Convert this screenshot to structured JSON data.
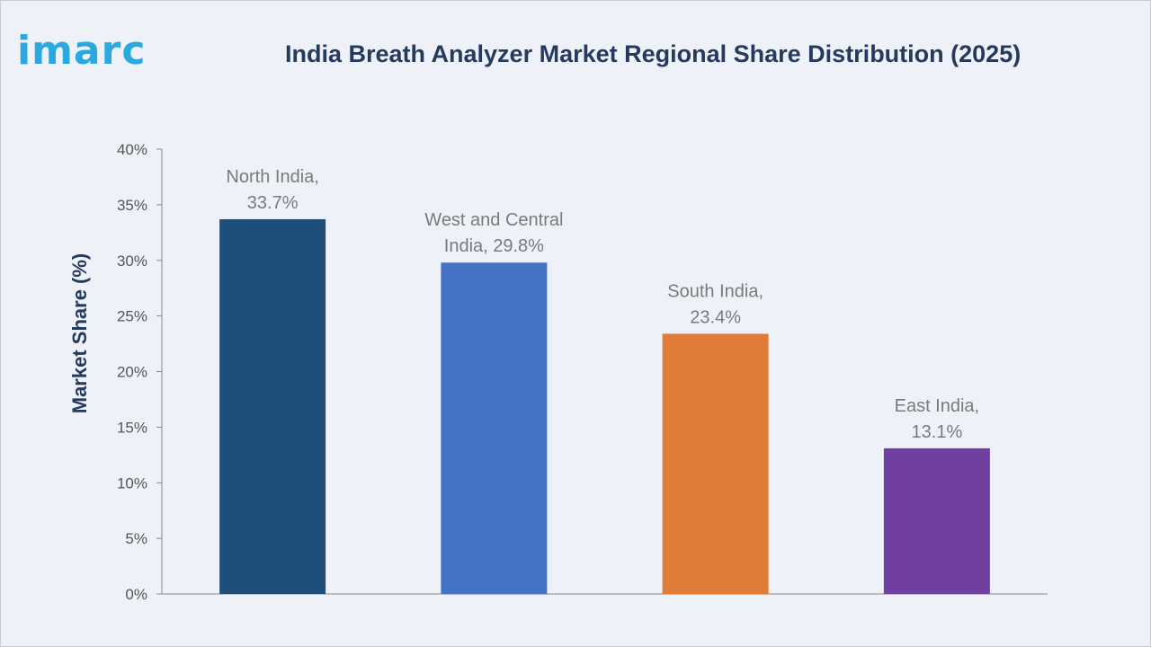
{
  "logo_text": "imarc",
  "chart_data": {
    "type": "bar",
    "title": "India Breath Analyzer Market Regional Share Distribution (2025)",
    "ylabel": "Market Share (%)",
    "xlabel": "",
    "ylim": [
      0,
      40
    ],
    "yticks": [
      "0%",
      "5%",
      "10%",
      "15%",
      "20%",
      "25%",
      "30%",
      "35%",
      "40%"
    ],
    "categories": [
      "North India",
      "West and Central India",
      "South India",
      "East India"
    ],
    "values": [
      33.7,
      29.8,
      23.4,
      13.1
    ],
    "data_labels": [
      [
        "North India,",
        "33.7%"
      ],
      [
        "West and Central",
        "India, 29.8%"
      ],
      [
        "South India,",
        "23.4%"
      ],
      [
        "East India,",
        "13.1%"
      ]
    ],
    "colors": [
      "#1f4e79",
      "#4472c4",
      "#e07b39",
      "#7040a0"
    ],
    "grid": false,
    "legend": "none"
  }
}
